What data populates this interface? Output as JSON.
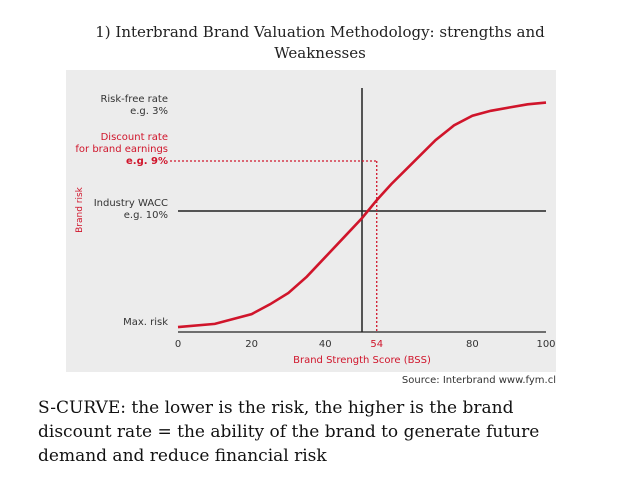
{
  "slide": {
    "title_line1": "1) Interbrand Brand Valuation Methodology: strengths and",
    "title_line2": "Weaknesses",
    "source": "Source: Interbrand www.fym.cl",
    "caption_lines": [
      "S-CURVE: the lower is the risk, the higher is the brand",
      "discount rate = the ability of the brand to generate future",
      "demand and reduce financial risk"
    ]
  },
  "colors": {
    "curve": "#d0152b",
    "axis": "#222222",
    "background": "#ececec"
  },
  "chart_data": {
    "type": "line",
    "xlabel": "Brand Strength Score (BSS)",
    "ylabel": "Brand risk",
    "xlim": [
      0,
      100
    ],
    "x_ticks": [
      "0",
      "20",
      "40",
      "54",
      "80",
      "100"
    ],
    "x_tick_values": [
      0,
      20,
      40,
      54,
      80,
      100
    ],
    "grid": false,
    "series": [
      {
        "x": [
          0,
          10,
          20,
          25,
          30,
          35,
          40,
          45,
          50,
          54,
          58,
          62,
          66,
          70,
          75,
          80,
          85,
          90,
          95,
          100
        ],
        "y": [
          0.03,
          0.05,
          0.11,
          0.17,
          0.24,
          0.34,
          0.46,
          0.58,
          0.7,
          0.81,
          0.91,
          1.0,
          1.09,
          1.18,
          1.27,
          1.33,
          1.36,
          1.38,
          1.4,
          1.41
        ]
      }
    ],
    "reference_lines": {
      "vertical_x": 50,
      "horizontal_label": "Industry WACC",
      "dotted_x": 54
    },
    "y_annotations": [
      {
        "label": "Risk-free rate",
        "sub": "e.g. 3%",
        "color": "gray"
      },
      {
        "label": "Discount rate",
        "label2": "for brand earnings",
        "sub": "e.g. 9%",
        "color": "red"
      },
      {
        "label": "Industry WACC",
        "sub": "e.g. 10%",
        "color": "gray"
      },
      {
        "label": "Max. risk",
        "color": "gray"
      }
    ]
  }
}
